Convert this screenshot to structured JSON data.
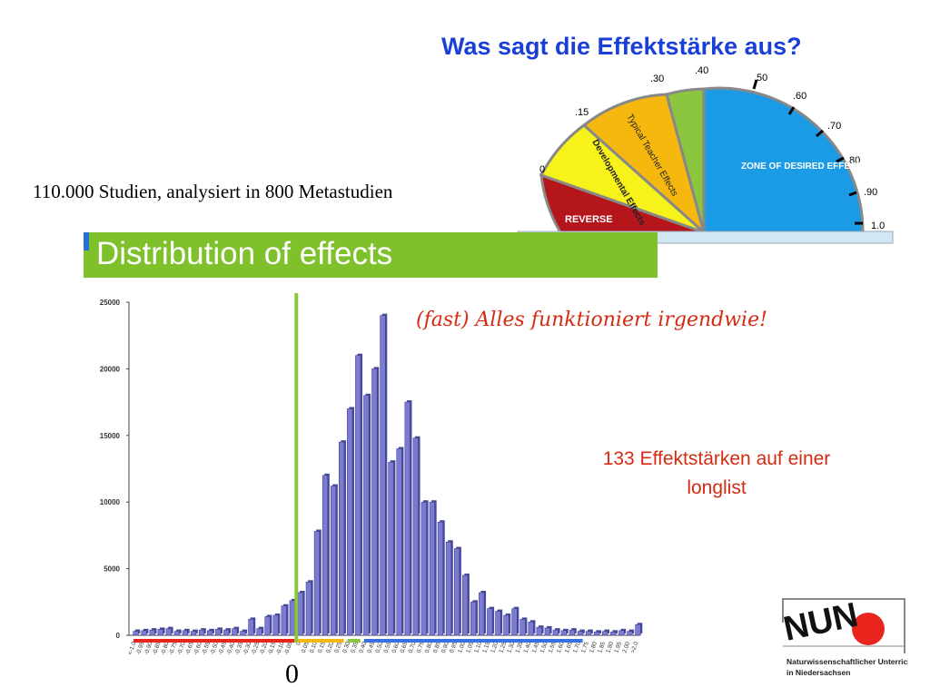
{
  "header": {
    "title": "Was sagt die Effektstärke aus?",
    "studies_text": "110.000 Studien, analysiert in 800 Metastudien",
    "distribution_title": "Distribution of effects"
  },
  "annotations": {
    "subtitle": "(fast) Alles funktioniert irgendwie!",
    "longlist_line1": "133 Effektstärken auf einer",
    "longlist_line2": "longlist",
    "zero_marker": "0"
  },
  "gauge": {
    "ticks": [
      ".15",
      ".30",
      ".40",
      ".50",
      ".60",
      ".70",
      ".80",
      ".90",
      "1.0",
      "0"
    ],
    "zones": [
      "REVERSE",
      "Developmental Effects",
      "Typical Teacher Effects",
      "ZONE OF DESIRED EFFECTS"
    ],
    "colors": {
      "reverse": "#b5161c",
      "developmental": "#f7f21a",
      "teacher": "#f6b70e",
      "green": "#8cc63f",
      "desired": "#1b9be6"
    }
  },
  "logo": {
    "brand": "NUN",
    "line1": "Naturwissenschaftlicher Unterricht",
    "line2": "in Niedersachsen"
  },
  "chart_data": {
    "type": "bar",
    "ylim": [
      0,
      25000
    ],
    "yticks": [
      "0",
      "5000",
      "10000",
      "15000",
      "20000",
      "25000"
    ],
    "xlabels": [
      "<-1.0",
      "-0.95",
      "-0.90",
      "-0.85",
      "-0.80",
      "-0.75",
      "-0.70",
      "-0.65",
      "-0.60",
      "-0.55",
      "-0.50",
      "-0.45",
      "-0.40",
      "-0.35",
      "-0.30",
      "-0.25",
      "-0.20",
      "-0.15",
      "-0.10",
      "-0.05",
      "0",
      "0.05",
      "0.10",
      "0.15",
      "0.20",
      "0.25",
      "0.30",
      "0.35",
      "0.40",
      "0.45",
      "0.50",
      "0.55",
      "0.60",
      "0.65",
      "0.70",
      "0.75",
      "0.80",
      "0.85",
      "0.90",
      "0.95",
      "1.00",
      "1.05",
      "1.10",
      "1.15",
      "1.20",
      "1.25",
      "1.30",
      "1.35",
      "1.40",
      "1.45",
      "1.50",
      "1.55",
      "1.60",
      "1.65",
      "1.70",
      "1.75",
      "1.80",
      "1.85",
      "1.90",
      "1.95",
      "2.00",
      ">2.0"
    ],
    "values": [
      300,
      350,
      400,
      450,
      500,
      300,
      350,
      300,
      400,
      350,
      450,
      400,
      500,
      300,
      1200,
      500,
      1400,
      1500,
      2200,
      2600,
      3200,
      4000,
      7800,
      12000,
      11200,
      14500,
      17000,
      21000,
      18000,
      20000,
      24000,
      13000,
      14000,
      17500,
      14800,
      10000,
      10000,
      8500,
      7000,
      6500,
      4500,
      2500,
      3200,
      2000,
      1800,
      1500,
      2000,
      1200,
      1000,
      600,
      550,
      400,
      350,
      400,
      300,
      300,
      250,
      300,
      250,
      350,
      300,
      800
    ],
    "bar_color": "#7b7bd4",
    "zero_line_color": "#8cc63f",
    "range_bars": [
      {
        "name": "reverse",
        "color": "#e8241c"
      },
      {
        "name": "developmental",
        "color": "#f6b70e"
      },
      {
        "name": "teacher",
        "color": "#8cc63f"
      },
      {
        "name": "desired",
        "color": "#3a6fe0"
      }
    ]
  }
}
